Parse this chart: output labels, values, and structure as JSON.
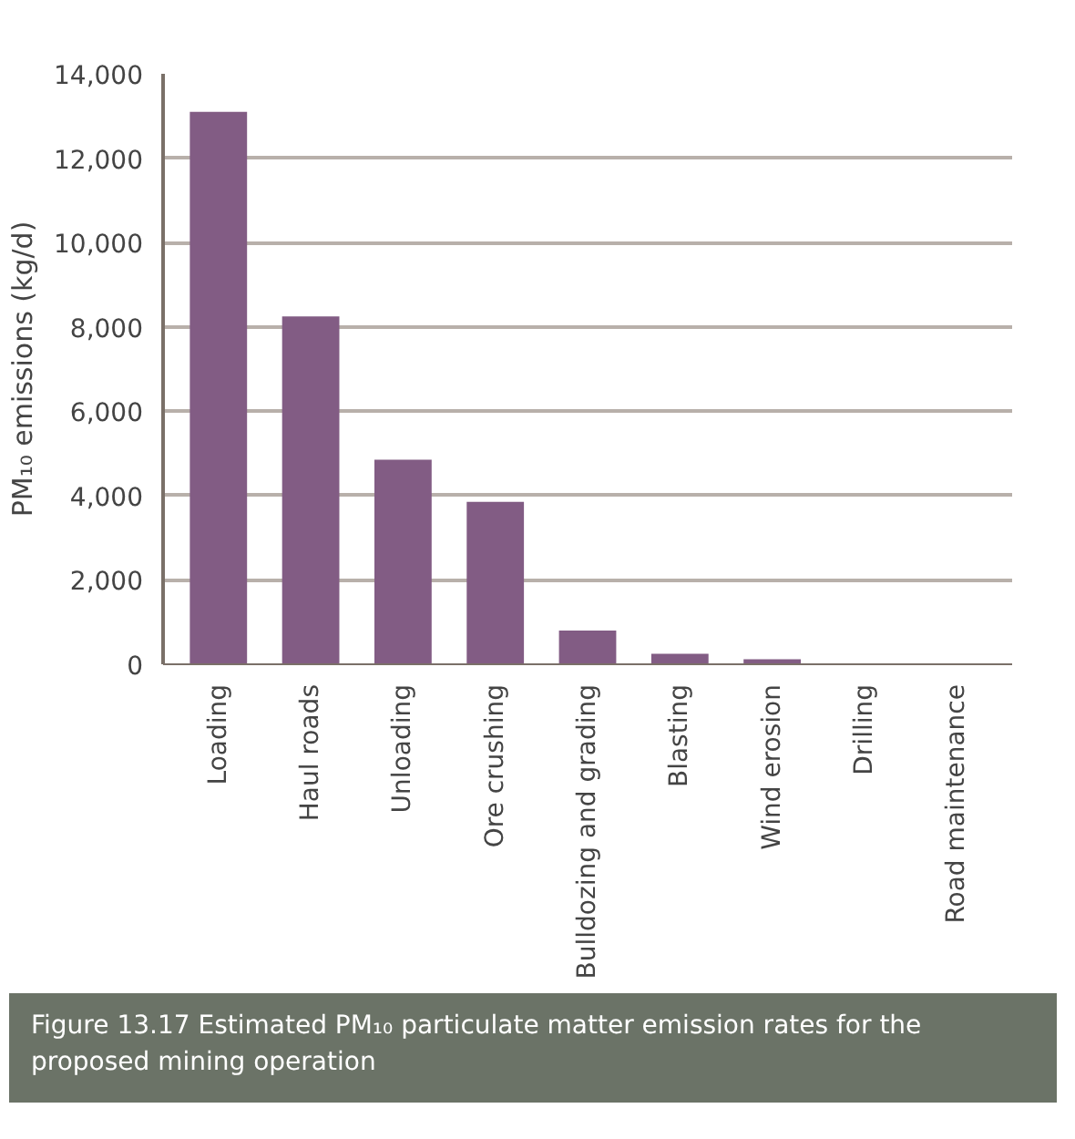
{
  "chart_data": {
    "type": "bar",
    "title": "Figure 13.17  Estimated PM₁₀ particulate matter emission rates for the proposed mining operation",
    "ylabel": "PM₁₀ emissions (kg/d)",
    "categories": [
      "Loading",
      "Haul roads",
      "Unloading",
      "Ore crushing",
      "Bulldozing and grading",
      "Blasting",
      "Wind erosion",
      "Drilling",
      "Road maintenance"
    ],
    "values": [
      13100,
      8250,
      4850,
      3850,
      800,
      250,
      120,
      0,
      0
    ],
    "color": "#825c84",
    "ylim": [
      0,
      14000
    ],
    "yticks": [
      {
        "value": 0,
        "label": "0"
      },
      {
        "value": 2000,
        "label": "2,000"
      },
      {
        "value": 4000,
        "label": "4,000"
      },
      {
        "value": 6000,
        "label": "6,000"
      },
      {
        "value": 8000,
        "label": "8,000"
      },
      {
        "value": 10000,
        "label": "10,000"
      },
      {
        "value": 12000,
        "label": "12,000"
      },
      {
        "value": 14000,
        "label": "14,000"
      }
    ],
    "grid": "y"
  }
}
